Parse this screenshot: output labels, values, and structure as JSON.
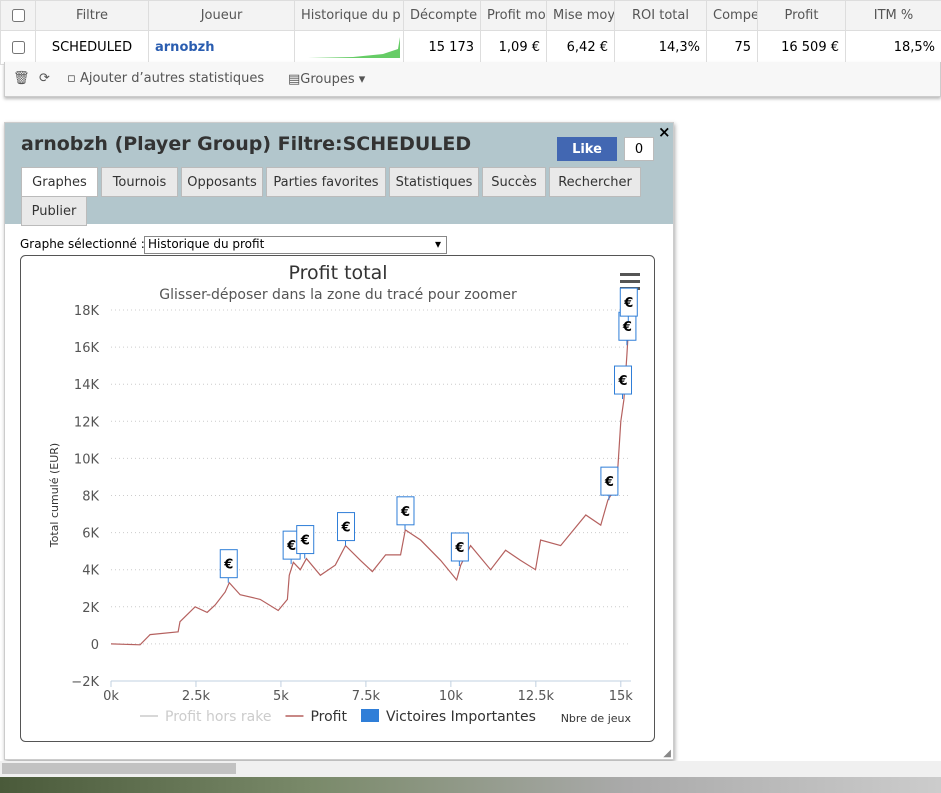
{
  "table": {
    "headers": [
      "Filtre",
      "Joueur",
      "Historique du p",
      "Décompte",
      "Profit mo",
      "Mise moy",
      "ROI total",
      "Compe",
      "Profit",
      "ITM %"
    ],
    "row": [
      "SCHEDULED",
      "arnobzh",
      "15 173",
      "1,09 €",
      "6,42 €",
      "14,3%",
      "75",
      "16 509 €",
      "18,5%"
    ]
  },
  "toolbar": {
    "add_stats": "Ajouter d’autres statistiques",
    "groups": "Groupes"
  },
  "panel": {
    "title": "arnobzh (Player Group) Filtre:SCHEDULED",
    "like": "Like",
    "like_count": "0",
    "tabs": [
      "Graphes",
      "Tournois",
      "Opposants",
      "Parties favorites",
      "Statistiques",
      "Succès",
      "Rechercher",
      "Publier"
    ],
    "graph_label": "Graphe sélectionné :",
    "graph_select": "Historique du profit"
  },
  "chart_data": {
    "type": "line",
    "title": "Profit total",
    "subtitle": "Glisser-déposer dans la zone du tracé pour zoomer",
    "y_label": "Total cumulé (EUR)",
    "x_label": "Nbre de jeux",
    "grid": true,
    "xlim": [
      0,
      15300
    ],
    "ylim": [
      -2000,
      18000
    ],
    "xticks": [
      {
        "value": 0,
        "label": "0k"
      },
      {
        "value": 2500,
        "label": "2.5k"
      },
      {
        "value": 5000,
        "label": "5k"
      },
      {
        "value": 7500,
        "label": "7.5k"
      },
      {
        "value": 10000,
        "label": "10k"
      },
      {
        "value": 12500,
        "label": "12.5k"
      },
      {
        "value": 15000,
        "label": "15k"
      }
    ],
    "yticks": [
      {
        "value": -2000,
        "label": "−2K"
      },
      0,
      {
        "value": 2000,
        "label": "2K"
      },
      {
        "value": 4000,
        "label": "4K"
      },
      {
        "value": 6000,
        "label": "6K"
      },
      {
        "value": 8000,
        "label": "8K"
      },
      {
        "value": 10000,
        "label": "10K"
      },
      {
        "value": 12000,
        "label": "12K"
      },
      {
        "value": 14000,
        "label": "14K"
      },
      {
        "value": 16000,
        "label": "16K"
      },
      {
        "value": 18000,
        "label": "18K"
      }
    ],
    "series": [
      {
        "name": "Profit hors rake",
        "color": "#cccccc",
        "visible": false
      },
      {
        "name": "Profit",
        "color": "#b5615f",
        "x": [
          0,
          855,
          1150,
          1975,
          2030,
          2475,
          2830,
          3065,
          3360,
          3480,
          3800,
          4390,
          4920,
          5190,
          5245,
          5365,
          5570,
          5750,
          6160,
          6600,
          6900,
          7340,
          7690,
          8080,
          8520,
          8660,
          9110,
          9700,
          10170,
          10290,
          10580,
          11170,
          11610,
          12050,
          12490,
          12640,
          13230,
          13970,
          14410,
          14620,
          14880,
          15000,
          15090,
          15180,
          15240,
          15300
        ],
        "values": [
          0,
          -50,
          500,
          650,
          1200,
          2000,
          1700,
          2100,
          2800,
          3300,
          2650,
          2400,
          1800,
          2400,
          3700,
          4400,
          4000,
          4600,
          3700,
          4250,
          5300,
          4500,
          3900,
          4800,
          4800,
          6150,
          5600,
          4500,
          3450,
          4250,
          5300,
          4000,
          5050,
          4500,
          4000,
          5600,
          5300,
          6950,
          6400,
          7750,
          8550,
          12000,
          13150,
          15600,
          17450,
          17750
        ]
      },
      {
        "name": "Victoires Importantes",
        "color": "#2f7ed8",
        "type": "flags",
        "flag_label": "€",
        "x": [
          3450,
          5300,
          5700,
          6900,
          8650,
          10250,
          14650,
          15050,
          15180,
          15220
        ],
        "values": [
          3300,
          4300,
          4600,
          5300,
          6150,
          4200,
          7750,
          13200,
          16100,
          17400
        ]
      }
    ]
  }
}
